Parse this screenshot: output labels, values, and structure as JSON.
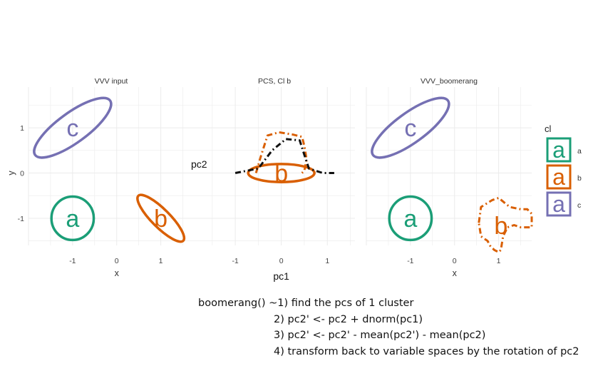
{
  "chart_data": [
    {
      "type": "scatter",
      "title": "VVV input",
      "xlabel": "x",
      "ylabel": "y",
      "xlim": [
        -2.0,
        1.75
      ],
      "ylim": [
        -1.6,
        1.9
      ],
      "xticks": [
        -1,
        0,
        1
      ],
      "yticks": [
        -1,
        0,
        1
      ],
      "grid": true,
      "clusters": [
        {
          "label": "a",
          "color": "#1b9e77",
          "center": [
            -1.0,
            -1.0
          ],
          "rx": 0.48,
          "ry": 0.48,
          "angle": 0,
          "style": "solid"
        },
        {
          "label": "b",
          "color": "#d95f02",
          "center": [
            1.0,
            -1.0
          ],
          "rx": 0.72,
          "ry": 0.2,
          "angle": 45,
          "style": "solid"
        },
        {
          "label": "c",
          "color": "#7570b3",
          "center": [
            -1.0,
            1.0
          ],
          "rx": 1.05,
          "ry": 0.33,
          "angle": -36,
          "style": "solid"
        }
      ]
    },
    {
      "type": "scatter",
      "title": "PCS, Cl b",
      "xlabel": "pc1",
      "ylabel": "pc2",
      "xlim": [
        -1.9,
        1.6
      ],
      "ylim": [
        -1.6,
        1.9
      ],
      "xticks": [
        -1,
        0,
        1
      ],
      "yticks": [],
      "grid": true,
      "clusters": [
        {
          "label": "b",
          "color": "#d95f02",
          "center": [
            0.0,
            0.0
          ],
          "rx": 0.72,
          "ry": 0.2,
          "angle": 0,
          "style": "solid"
        }
      ],
      "series": [
        {
          "color": "#d95f02",
          "style": "dashed",
          "x": [
            -0.55,
            -0.45,
            -0.3,
            -0.05,
            0.25,
            0.45,
            0.5,
            0.55,
            0.5,
            0.45
          ],
          "y": [
            0.0,
            0.35,
            0.83,
            0.9,
            0.85,
            0.8,
            0.6,
            0.3,
            0.05,
            0.0
          ]
        },
        {
          "color": "#111111",
          "style": "dashed",
          "x": [
            -1.0,
            -0.5,
            -0.2,
            0.1,
            0.4,
            0.5,
            0.6,
            0.9,
            1.15
          ],
          "y": [
            0.0,
            0.1,
            0.5,
            0.75,
            0.72,
            0.4,
            0.1,
            0.0,
            0.0
          ]
        }
      ]
    },
    {
      "type": "scatter",
      "title": "VVV_boomerang",
      "xlabel": "x",
      "ylabel": "",
      "xlim": [
        -2.0,
        1.75
      ],
      "ylim": [
        -1.6,
        1.9
      ],
      "xticks": [
        -1,
        0,
        1
      ],
      "yticks": [],
      "grid": true,
      "clusters": [
        {
          "label": "a",
          "color": "#1b9e77",
          "center": [
            -1.0,
            -1.0
          ],
          "rx": 0.48,
          "ry": 0.48,
          "angle": 0,
          "style": "solid"
        },
        {
          "label": "c",
          "color": "#7570b3",
          "center": [
            -1.0,
            1.0
          ],
          "rx": 1.05,
          "ry": 0.33,
          "angle": -36,
          "style": "solid"
        }
      ],
      "series": [
        {
          "label": "b",
          "color": "#d95f02",
          "style": "dashed",
          "x": [
            0.55,
            0.6,
            0.85,
            1.0,
            1.25,
            1.5,
            1.65,
            1.75,
            1.75,
            1.5,
            1.35,
            1.2,
            1.1,
            1.05,
            1.0,
            0.9,
            0.8,
            0.75,
            0.6,
            0.55
          ],
          "y": [
            -1.1,
            -0.75,
            -0.6,
            -0.55,
            -0.75,
            -0.8,
            -0.8,
            -0.9,
            -1.2,
            -1.2,
            -1.15,
            -1.2,
            -1.4,
            -1.7,
            -1.75,
            -1.7,
            -1.6,
            -1.5,
            -1.4,
            -1.1
          ]
        }
      ]
    }
  ],
  "legend": {
    "title": "cl",
    "placement": "right",
    "items": [
      {
        "label": "a",
        "key": "a",
        "color": "#1b9e77"
      },
      {
        "label": "b",
        "key": "a",
        "color": "#d95f02"
      },
      {
        "label": "c",
        "key": "a",
        "color": "#7570b3"
      }
    ]
  },
  "notes": {
    "lines": [
      "boomerang() ~1) find the pcs of 1 cluster",
      "2) pc2' <- pc2 + dnorm(pc1)",
      "3) pc2' <- pc2' - mean(pc2') - mean(pc2)",
      "4) transform back to variable spaces by the rotation of pc2"
    ]
  }
}
